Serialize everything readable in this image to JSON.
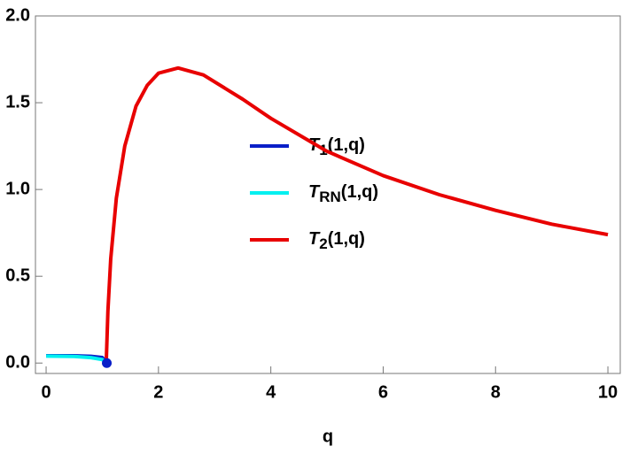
{
  "chart_data": {
    "type": "line",
    "xlabel": "q",
    "xlim": [
      -0.19,
      10.22
    ],
    "ylim": [
      -0.06,
      2.0
    ],
    "xticks": [
      0,
      2,
      4,
      6,
      8,
      10
    ],
    "yticks": [
      {
        "value": 0,
        "label": "0.0"
      },
      {
        "value": 0.5,
        "label": "0.5"
      },
      {
        "value": 1,
        "label": "1.0"
      },
      {
        "value": 1.5,
        "label": "1.5"
      },
      {
        "value": 2,
        "label": "2.0"
      }
    ],
    "series": [
      {
        "name": "T1(1,q)",
        "color": "#0a1fc8",
        "x": [
          0,
          0.5,
          0.8,
          1.0,
          1.08
        ],
        "values": [
          0.042,
          0.042,
          0.039,
          0.032,
          0.0
        ]
      },
      {
        "name": "TRN(1,q)",
        "color": "#00f0f0",
        "x": [
          0,
          0.5,
          0.8,
          1.0,
          1.08
        ],
        "values": [
          0.04,
          0.038,
          0.031,
          0.02,
          0.0
        ]
      },
      {
        "name": "T2(1,q)",
        "color": "#e80000",
        "x": [
          1.07,
          1.1,
          1.15,
          1.25,
          1.4,
          1.6,
          1.8,
          2.0,
          2.35,
          2.8,
          3.5,
          4,
          5,
          6,
          7,
          8,
          9,
          10
        ],
        "values": [
          0,
          0.3,
          0.6,
          0.95,
          1.25,
          1.48,
          1.6,
          1.67,
          1.7,
          1.66,
          1.52,
          1.41,
          1.22,
          1.08,
          0.97,
          0.88,
          0.8,
          0.74
        ]
      }
    ],
    "points": [
      {
        "x": 1.08,
        "y": 0,
        "color": "#0a1fc8"
      }
    ]
  }
}
